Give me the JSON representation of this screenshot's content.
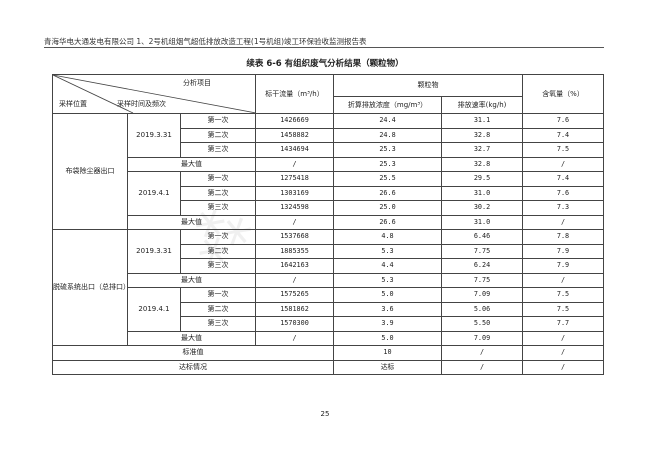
{
  "header": "青海华电大通发电有限公司 1、2号机组烟气超低排放改造工程(1号机组)竣工环保验收监测报告表",
  "title": "续表 6-6   有组织废气分析结果（颗粒物）",
  "cols": {
    "analysis_item": "分析项目",
    "location": "采样位置",
    "time_freq": "采样时间及频次",
    "flow": "标干流量（m³/h）",
    "pm": "颗粒物",
    "conc": "折算排放浓度（mg/m³）",
    "rate": "排放速率(kg/h)",
    "o2": "含氧量（%）"
  },
  "groups": [
    {
      "location": "布袋除尘器出口",
      "dates": [
        {
          "date": "2019.3.31",
          "rows": [
            [
              "第一次",
              "1426669",
              "24.4",
              "31.1",
              "7.6"
            ],
            [
              "第二次",
              "1458882",
              "24.8",
              "32.8",
              "7.4"
            ],
            [
              "第三次",
              "1434694",
              "25.3",
              "32.7",
              "7.5"
            ]
          ],
          "max": [
            "最大值",
            "/",
            "25.3",
            "32.8",
            "/"
          ]
        },
        {
          "date": "2019.4.1",
          "rows": [
            [
              "第一次",
              "1275418",
              "25.5",
              "29.5",
              "7.4"
            ],
            [
              "第二次",
              "1303169",
              "26.6",
              "31.0",
              "7.6"
            ],
            [
              "第三次",
              "1324598",
              "25.0",
              "30.2",
              "7.3"
            ]
          ],
          "max": [
            "最大值",
            "/",
            "26.6",
            "31.0",
            "/"
          ]
        }
      ]
    },
    {
      "location": "脱硫系统出口（总排口）",
      "dates": [
        {
          "date": "2019.3.31",
          "rows": [
            [
              "第一次",
              "1537668",
              "4.8",
              "6.46",
              "7.8"
            ],
            [
              "第二次",
              "1885355",
              "5.3",
              "7.75",
              "7.9"
            ],
            [
              "第三次",
              "1642163",
              "4.4",
              "6.24",
              "7.9"
            ]
          ],
          "max": [
            "最大值",
            "/",
            "5.3",
            "7.75",
            "/"
          ]
        },
        {
          "date": "2019.4.1",
          "rows": [
            [
              "第一次",
              "1575265",
              "5.0",
              "7.09",
              "7.5"
            ],
            [
              "第二次",
              "1581862",
              "3.6",
              "5.06",
              "7.5"
            ],
            [
              "第三次",
              "1570300",
              "3.9",
              "5.50",
              "7.7"
            ]
          ],
          "max": [
            "最大值",
            "/",
            "5.0",
            "7.09",
            "/"
          ]
        }
      ]
    }
  ],
  "standard": [
    "标准值",
    "10",
    "/",
    "/"
  ],
  "compliance": [
    "达标情况",
    "达标",
    "/",
    "/"
  ],
  "page_number": "25"
}
